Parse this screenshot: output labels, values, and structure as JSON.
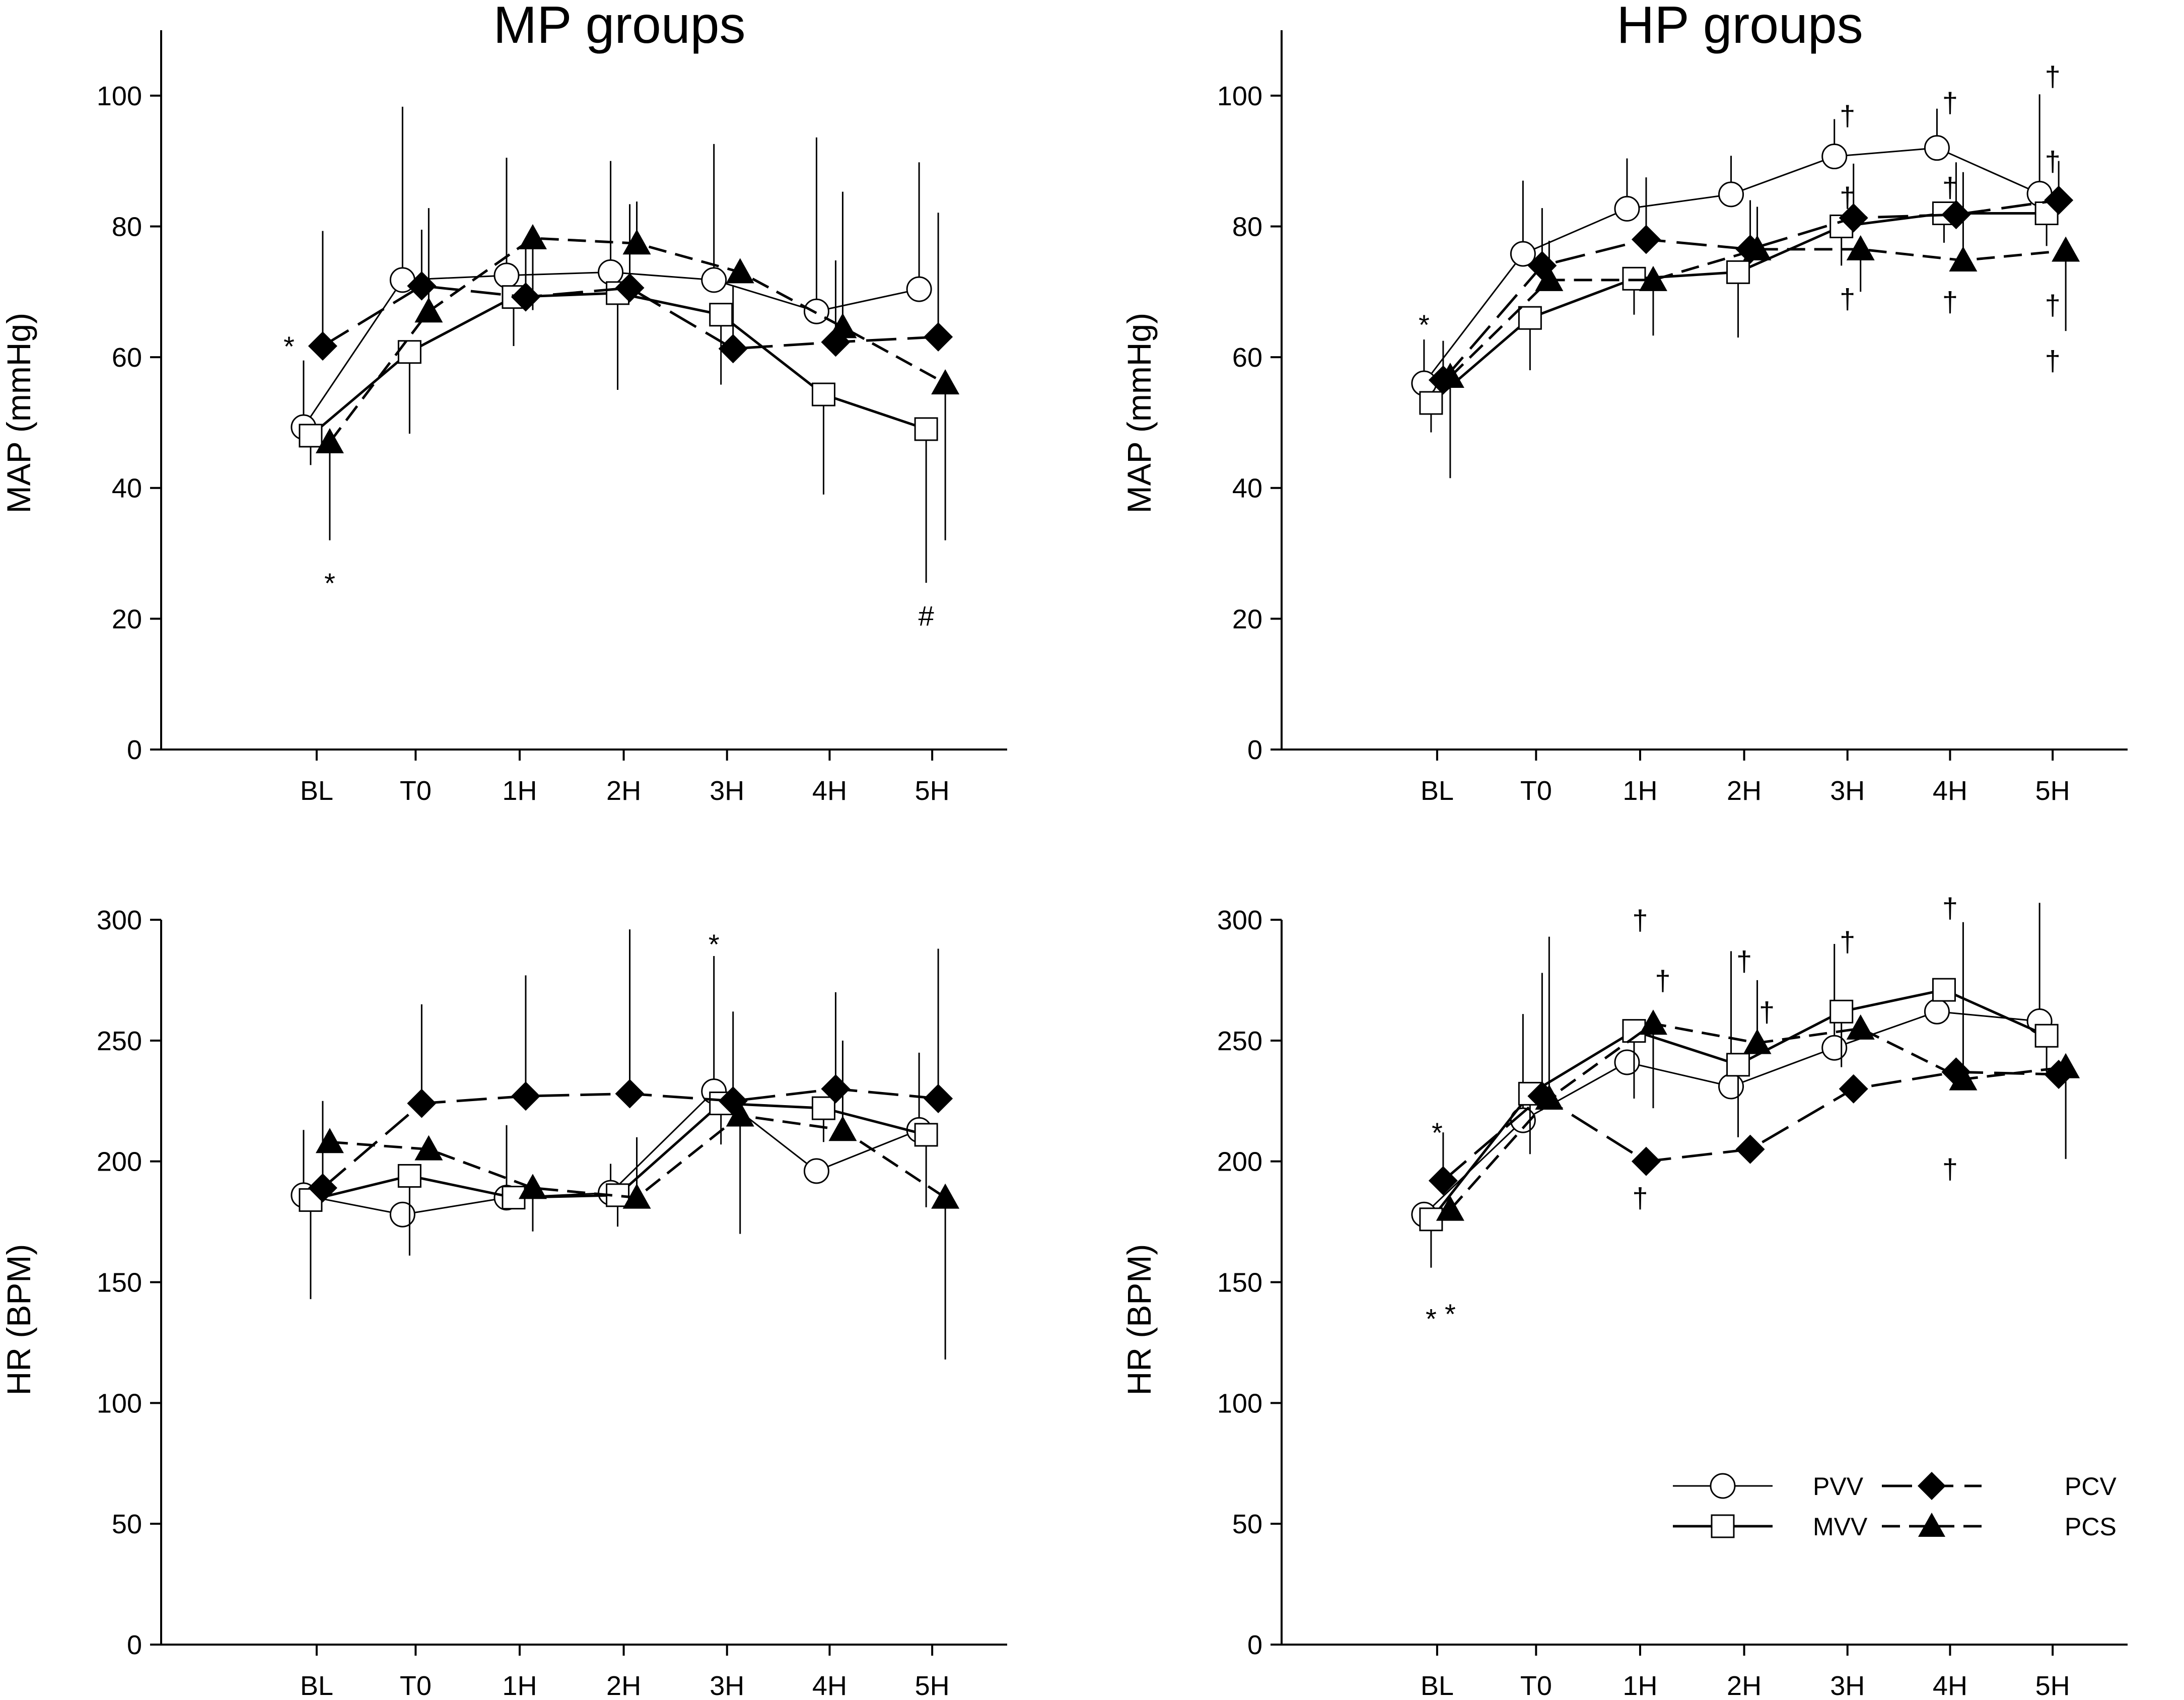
{
  "figure": {
    "legend": [
      {
        "name": "PVV",
        "marker": "circle",
        "fill": "#ffffff",
        "line": "solid-thin"
      },
      {
        "name": "MVV",
        "marker": "square",
        "fill": "#ffffff",
        "line": "solid"
      },
      {
        "name": "PCV",
        "marker": "diamond",
        "fill": "#000000",
        "line": "long-dash"
      },
      {
        "name": "PCS",
        "marker": "triangle",
        "fill": "#000000",
        "line": "dash"
      }
    ],
    "colors": {
      "line": "#000000",
      "open_marker_fill": "#ffffff",
      "filled_marker": "#000000"
    }
  },
  "chart_data": [
    {
      "id": "mp-map",
      "type": "line",
      "title": "MP groups",
      "xlabel": "",
      "ylabel": "MAP (mmHg)",
      "categories": [
        "BL",
        "T0",
        "1H",
        "2H",
        "3H",
        "4H",
        "5H"
      ],
      "ylim": [
        0,
        110
      ],
      "yticks": [
        0,
        20,
        40,
        60,
        80,
        100
      ],
      "series": [
        {
          "name": "PVV",
          "values": [
            49.3,
            71.8,
            72.5,
            73.0,
            71.8,
            67.0,
            70.4
          ],
          "err": [
            10.2,
            26.5,
            18.0,
            17.0,
            20.8,
            26.6,
            19.4
          ]
        },
        {
          "name": "MVV",
          "values": [
            48.0,
            60.8,
            69.2,
            69.8,
            66.5,
            54.3,
            49.0
          ],
          "err": [
            4.5,
            12.5,
            7.5,
            14.8,
            10.7,
            15.3,
            23.5
          ]
        },
        {
          "name": "PCV",
          "values": [
            61.7,
            70.9,
            69.2,
            70.6,
            61.3,
            62.3,
            63.1
          ],
          "err": [
            17.6,
            8.6,
            7.7,
            12.8,
            9.7,
            12.5,
            19.0
          ]
        },
        {
          "name": "PCS",
          "values": [
            47.0,
            67.0,
            78.2,
            77.4,
            73.0,
            64.6,
            56.0
          ],
          "err": [
            15.0,
            15.8,
            11.0,
            6.4,
            1.5,
            20.7,
            24.0
          ]
        }
      ],
      "annotations": [
        {
          "text": "*",
          "x": "BL",
          "y": 61.7,
          "place": "left-of-PCV"
        },
        {
          "text": "*",
          "x": "BL",
          "y": 25.5,
          "place": "below-PCS"
        },
        {
          "text": "#",
          "x": "5H",
          "y": 20.5,
          "place": "below-MVV"
        }
      ]
    },
    {
      "id": "hp-map",
      "type": "line",
      "title": "HP groups",
      "xlabel": "",
      "ylabel": "MAP (mmHg)",
      "categories": [
        "BL",
        "T0",
        "1H",
        "2H",
        "3H",
        "4H",
        "5H"
      ],
      "ylim": [
        0,
        110
      ],
      "yticks": [
        0,
        20,
        40,
        60,
        80,
        100
      ],
      "series": [
        {
          "name": "PVV",
          "values": [
            56.0,
            75.8,
            82.7,
            84.9,
            90.7,
            92.0,
            85.0
          ],
          "err": [
            6.7,
            11.2,
            7.7,
            5.9,
            5.7,
            6.0,
            15.2
          ]
        },
        {
          "name": "MVV",
          "values": [
            53.0,
            66.0,
            72.0,
            73.0,
            80.0,
            82.0,
            82.0
          ],
          "err": [
            4.5,
            8.0,
            5.5,
            10.0,
            6.0,
            4.5,
            5.0
          ]
        },
        {
          "name": "PCV",
          "values": [
            56.5,
            74.0,
            78.0,
            76.5,
            81.3,
            81.8,
            84.0
          ],
          "err": [
            6.0,
            8.8,
            9.5,
            7.5,
            8.3,
            8.0,
            6.0
          ]
        },
        {
          "name": "PCS",
          "values": [
            57.0,
            71.8,
            71.8,
            76.5,
            76.5,
            74.8,
            76.3
          ],
          "err": [
            15.5,
            6.0,
            8.5,
            6.5,
            6.5,
            13.5,
            12.3
          ]
        }
      ],
      "annotations": [
        {
          "text": "*",
          "x": "BL",
          "y": 65.0,
          "place": "above-PVV"
        },
        {
          "text": "†",
          "x": "3H",
          "y": 97.0
        },
        {
          "text": "†",
          "x": "3H",
          "y": 84.5
        },
        {
          "text": "†",
          "x": "3H",
          "y": 69.0
        },
        {
          "text": "†",
          "x": "4H",
          "y": 99.0
        },
        {
          "text": "†",
          "x": "4H",
          "y": 86.0
        },
        {
          "text": "†",
          "x": "4H",
          "y": 68.5
        },
        {
          "text": "†",
          "x": "5H",
          "y": 103.0
        },
        {
          "text": "†",
          "x": "5H",
          "y": 90.0
        },
        {
          "text": "†",
          "x": "5H",
          "y": 68.0
        },
        {
          "text": "†",
          "x": "5H",
          "y": 59.5
        }
      ]
    },
    {
      "id": "mp-hr",
      "type": "line",
      "title": "",
      "xlabel": "",
      "ylabel": "HR (BPM)",
      "categories": [
        "BL",
        "T0",
        "1H",
        "2H",
        "3H",
        "4H",
        "5H"
      ],
      "ylim": [
        0,
        300
      ],
      "yticks": [
        0,
        50,
        100,
        150,
        200,
        250,
        300
      ],
      "series": [
        {
          "name": "PVV",
          "values": [
            186.0,
            178.0,
            185.0,
            187.0,
            229.0,
            196.0,
            213.0
          ],
          "err": [
            27.0,
            0,
            30.0,
            12.0,
            56.0,
            0,
            32.0
          ]
        },
        {
          "name": "MVV",
          "values": [
            184.0,
            194.0,
            185.0,
            186.0,
            224.0,
            222.0,
            211.0
          ],
          "err": [
            41.0,
            33.0,
            0,
            13.0,
            17.0,
            14.0,
            30.0
          ]
        },
        {
          "name": "PCV",
          "values": [
            189.0,
            224.0,
            227.0,
            228.0,
            225.0,
            230.0,
            226.0
          ],
          "err": [
            36.0,
            41.0,
            50.0,
            68.0,
            37.0,
            40.0,
            62.0
          ]
        },
        {
          "name": "PCS",
          "values": [
            208.0,
            205.0,
            189.0,
            185.0,
            219.0,
            213.0,
            185.0
          ],
          "err": [
            0,
            0,
            18.0,
            25.0,
            49.0,
            37.0,
            67.0
          ]
        }
      ],
      "annotations": [
        {
          "text": "*",
          "x": "3H",
          "y": 290.0,
          "place": "above-PVV"
        }
      ]
    },
    {
      "id": "hp-hr",
      "type": "line",
      "title": "",
      "xlabel": "",
      "ylabel": "HR (BPM)",
      "categories": [
        "BL",
        "T0",
        "1H",
        "2H",
        "3H",
        "4H",
        "5H"
      ],
      "ylim": [
        0,
        300
      ],
      "yticks": [
        0,
        50,
        100,
        150,
        200,
        250,
        300
      ],
      "series": [
        {
          "name": "PVV",
          "values": [
            178.0,
            217.0,
            241.0,
            231.0,
            247.0,
            262.0,
            258.0
          ],
          "err": [
            0,
            44.0,
            0,
            56.0,
            43.0,
            0,
            49.0
          ]
        },
        {
          "name": "MVV",
          "values": [
            176.0,
            228.0,
            254.0,
            240.0,
            262.0,
            271.0,
            252.0
          ],
          "err": [
            20.0,
            25.0,
            28.0,
            30.0,
            23.0,
            0,
            15.0
          ]
        },
        {
          "name": "PCV",
          "values": [
            192.0,
            227.0,
            200.0,
            205.0,
            230.0,
            237.0,
            236.0
          ],
          "err": [
            20.0,
            51.0,
            0,
            0,
            0,
            0,
            0
          ]
        },
        {
          "name": "PCS",
          "values": [
            180.0,
            226.0,
            257.0,
            249.0,
            255.0,
            234.0,
            239.0
          ],
          "err": [
            0,
            67.0,
            35.0,
            26.0,
            0,
            65.0,
            38.0
          ]
        }
      ],
      "annotations": [
        {
          "text": "*",
          "x": "BL",
          "y": 212.0
        },
        {
          "text": "*",
          "x": "BL",
          "y": 135.0,
          "place": "below-MVV"
        },
        {
          "text": "*",
          "x": "BL",
          "y": 137.0,
          "place": "below-PCS"
        },
        {
          "text": "†",
          "x": "1H",
          "y": 300.0
        },
        {
          "text": "†",
          "x": "1H",
          "y": 185.0
        },
        {
          "text": "†",
          "x": "1H",
          "y": 275.0,
          "place": "right"
        },
        {
          "text": "†",
          "x": "2H",
          "y": 283.0
        },
        {
          "text": "†",
          "x": "2H",
          "y": 262.0,
          "place": "right"
        },
        {
          "text": "†",
          "x": "3H",
          "y": 291.0
        },
        {
          "text": "†",
          "x": "4H",
          "y": 305.0
        },
        {
          "text": "†",
          "x": "4H",
          "y": 197.0
        }
      ]
    }
  ]
}
